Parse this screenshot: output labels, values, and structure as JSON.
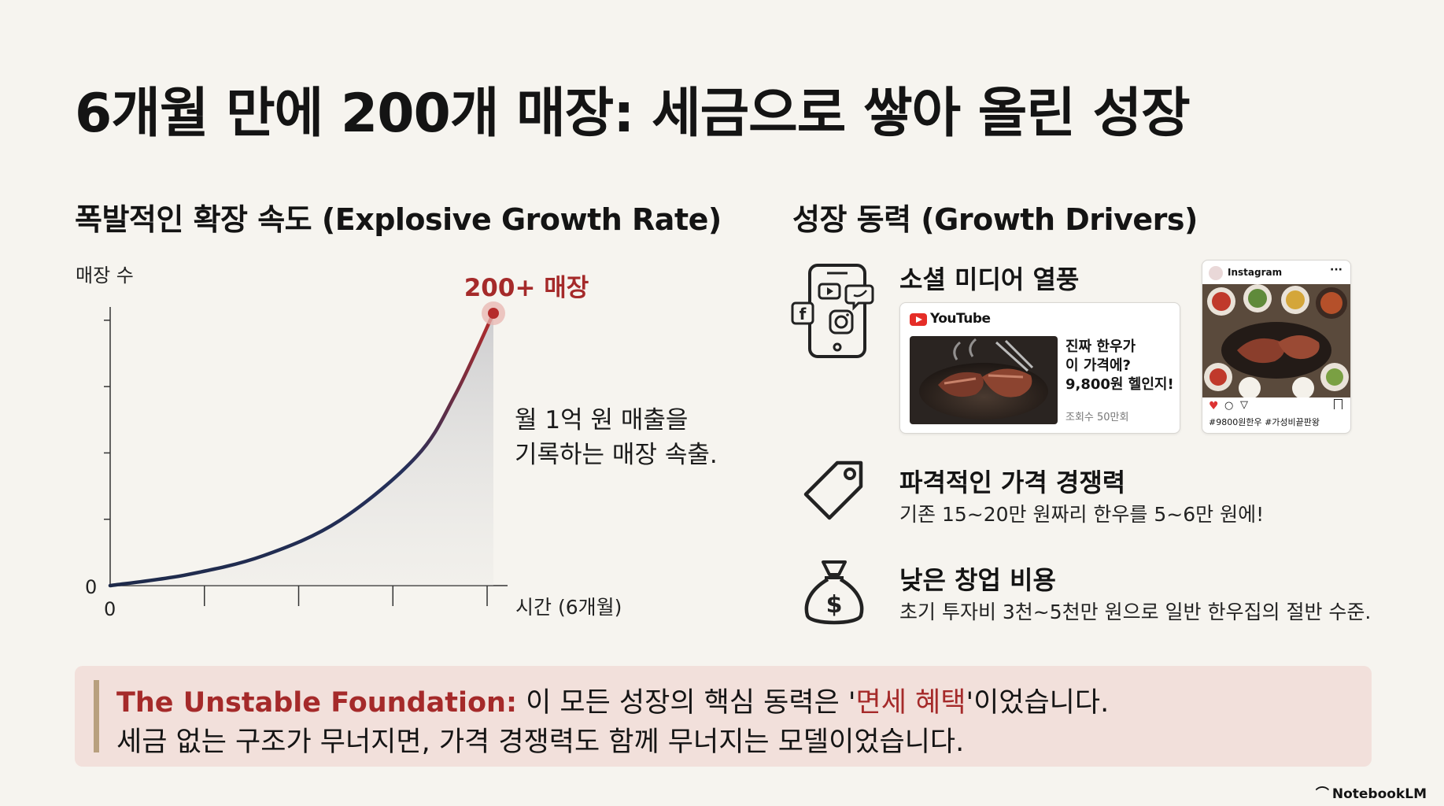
{
  "title": "6개월 만에 200개 매장: 세금으로 쌓아 올린 성장",
  "left_section": {
    "title": "폭발적인 확장 속도 (Explosive Growth Rate)"
  },
  "right_section": {
    "title": "성장 동력 (Growth Drivers)"
  },
  "chart_data": {
    "type": "line",
    "ylabel": "매장 수",
    "xlabel": "시간 (6개월)",
    "x_tick_label": "0",
    "y_tick_label": "0",
    "x": [
      0,
      1,
      2,
      3,
      4,
      4.5,
      5
    ],
    "series": [
      {
        "values": [
          0,
          8,
          22,
          48,
          95,
          140,
          200
        ]
      }
    ],
    "xlim": [
      0,
      5
    ],
    "ylim": [
      0,
      200
    ],
    "peak_label": "200+ 매장",
    "annotation": [
      "월 1억 원 매출을",
      "기록하는 매장 속출."
    ],
    "colors": {
      "start": "#1e2a4a",
      "end": "#b52b2b"
    }
  },
  "drivers": [
    {
      "icon": "social-phone-icon",
      "title": "소셜 미디어 열풍",
      "youtube": {
        "brand": "YouTube",
        "caption": [
          "진짜 한우가",
          "이 가격에?",
          "9,800원 헬인지!"
        ],
        "views": "조회수 50만회"
      },
      "instagram": {
        "brand": "Instagram",
        "more": "···",
        "hashtags": "#9800원한우 #가성비끝판왕"
      }
    },
    {
      "icon": "price-tag-icon",
      "title": "파격적인 가격 경쟁력",
      "desc": "기존 15~20만 원짜리 한우를 5~6만 원에!"
    },
    {
      "icon": "money-bag-icon",
      "title": "낮은 창업 비용",
      "desc": "초기 투자비 3천~5천만 원으로 일반 한우집의 절반 수준."
    }
  ],
  "callout": {
    "lead": "The Unstable Foundation:",
    "line1_a": " 이 모든 성장의 핵심 동력은 '",
    "highlight": "면세 혜택",
    "line1_b": "'이었습니다.",
    "line2": "세금 없는 구조가 무너지면, 가격 경쟁력도 함께 무너지는 모델이었습니다."
  },
  "brand": "NotebookLM",
  "colors": {
    "accent": "#a52a2a",
    "background": "#f6f4ef",
    "callout_bg": "#f2e0db",
    "line_dark": "#1e2a4a"
  }
}
